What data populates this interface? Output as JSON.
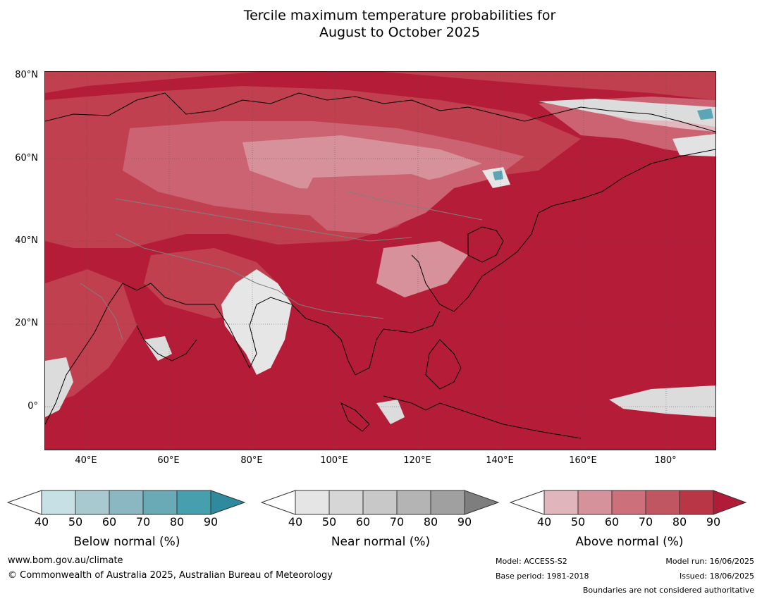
{
  "title": {
    "line1": "Tercile maximum temperature probabilities for",
    "line2": "August to October 2025"
  },
  "map": {
    "lat_labels": [
      "80°N",
      "60°N",
      "40°N",
      "20°N",
      "0°"
    ],
    "lon_labels": [
      "40°E",
      "60°E",
      "80°E",
      "100°E",
      "120°E",
      "140°E",
      "160°E",
      "180°"
    ],
    "colors": {
      "ocean_above_90": "#b41c38",
      "above_80": "#c0404f",
      "above_70": "#cc6372",
      "above_60": "#d6919a",
      "above_50": "#e2b8be",
      "near_normal": "#dcdcdc",
      "below_normal": "#5aa6b6",
      "coastline": "#000000",
      "borders": "#7f7f7f",
      "grid": "#555555"
    }
  },
  "legends": [
    {
      "title": "Below normal (%)",
      "ticks": [
        "40",
        "50",
        "60",
        "70",
        "80",
        "90"
      ],
      "colors": [
        "#ffffff",
        "#c7e0e6",
        "#a8c9d0",
        "#8ab7c1",
        "#6aaab6",
        "#479ead",
        "#2e8a9c"
      ]
    },
    {
      "title": "Near normal (%)",
      "ticks": [
        "40",
        "50",
        "60",
        "70",
        "80",
        "90"
      ],
      "colors": [
        "#ffffff",
        "#e5e5e5",
        "#d6d6d6",
        "#c8c8c8",
        "#b4b4b4",
        "#a0a0a0",
        "#7e7e7e"
      ]
    },
    {
      "title": "Above normal (%)",
      "ticks": [
        "40",
        "50",
        "60",
        "70",
        "80",
        "90"
      ],
      "colors": [
        "#ffffff",
        "#e0b6bc",
        "#d6929b",
        "#cc717c",
        "#c15663",
        "#b93647",
        "#b01c37"
      ]
    }
  ],
  "footer": {
    "website": "www.bom.gov.au/climate",
    "copyright": "© Commonwealth of Australia 2025, Australian Bureau of Meteorology",
    "model": "Model: ACCESS-S2",
    "base_period": "Base period: 1981-2018",
    "model_run": "Model run: 16/06/2025",
    "issued": "Issued: 18/06/2025",
    "disclaimer": "Boundaries are not considered authoritative"
  }
}
